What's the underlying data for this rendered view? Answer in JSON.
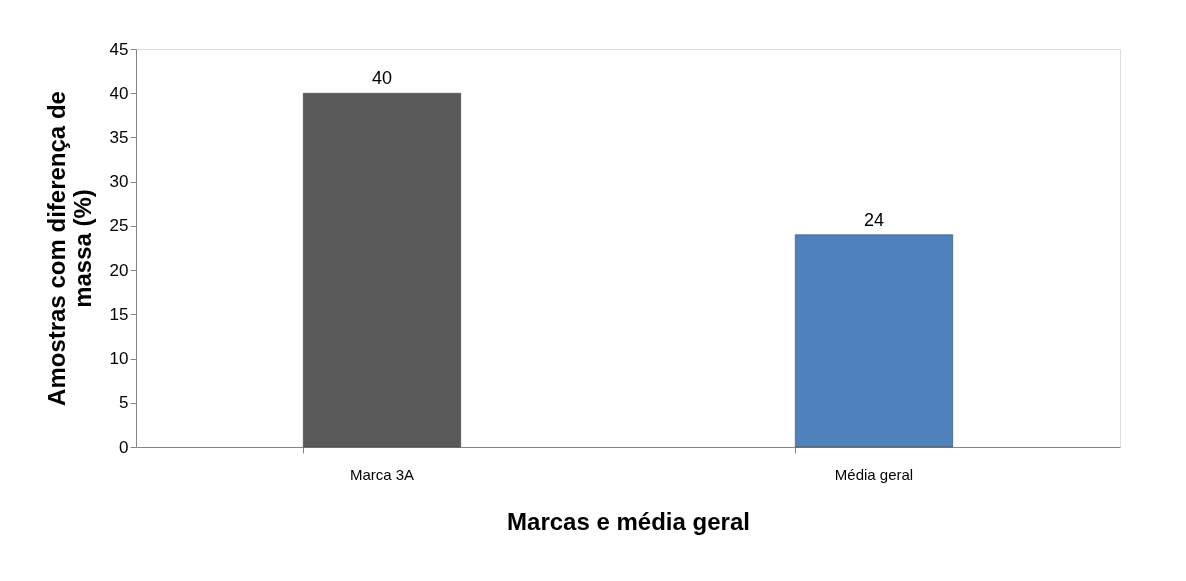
{
  "chart_data": {
    "type": "bar",
    "categories": [
      "Marca 3A",
      "Média geral"
    ],
    "values": [
      40,
      24
    ],
    "colors": [
      "#595959",
      "#4f81bd"
    ],
    "ylim": [
      0,
      45
    ],
    "yticks": [
      0,
      5,
      10,
      15,
      20,
      25,
      30,
      35,
      40,
      45
    ],
    "xlabel": "Marcas e média geral",
    "ylabel": "Amostras com diferença de massa (%)",
    "data_labels": true
  }
}
